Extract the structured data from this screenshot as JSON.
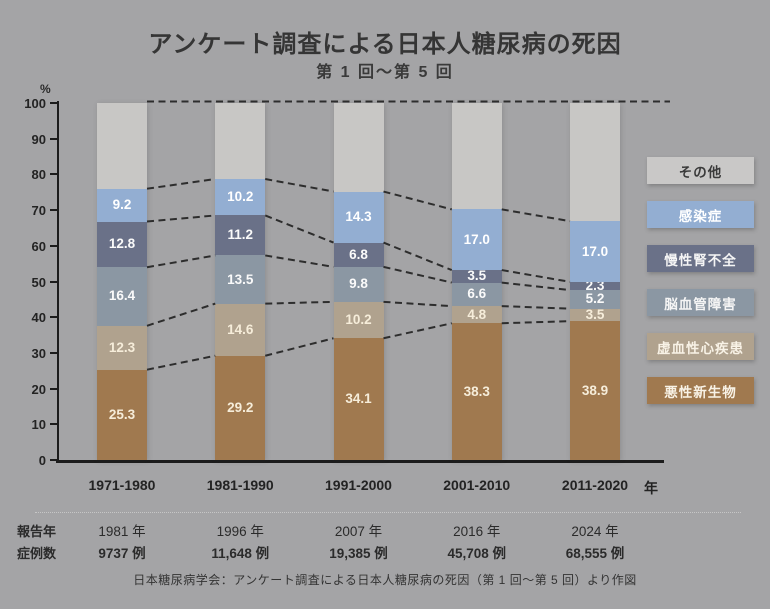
{
  "title": "アンケート調査による日本人糖尿病の死因",
  "subtitle": "第 1 回～第 5 回",
  "y_axis": {
    "unit": "%",
    "ticks": [
      100,
      90,
      80,
      70,
      60,
      50,
      40,
      30,
      20,
      10,
      0
    ],
    "max": 100
  },
  "x_axis": {
    "unit": "年",
    "categories": [
      "1971-1980",
      "1981-1990",
      "1991-2000",
      "2001-2010",
      "2011-2020"
    ]
  },
  "chart_data": {
    "type": "bar",
    "stacked": true,
    "title": "アンケート調査による日本人糖尿病の死因",
    "subtitle": "第 1 回～第 5 回",
    "categories": [
      "1971-1980",
      "1981-1990",
      "1991-2000",
      "2001-2010",
      "2011-2020"
    ],
    "ylabel": "%",
    "ylim": [
      0,
      100
    ],
    "series_bottom_to_top": [
      {
        "name": "悪性新生物",
        "color": "#a0794f",
        "label_color": "#f6edda",
        "values": [
          25.3,
          29.2,
          34.1,
          38.3,
          38.9
        ]
      },
      {
        "name": "虚血性心疾患",
        "color": "#b0a28e",
        "label_color": "#f6edda",
        "values": [
          12.3,
          14.6,
          10.2,
          4.8,
          3.5
        ]
      },
      {
        "name": "脳血管障害",
        "color": "#8b97a3",
        "label_color": "#fafafa",
        "values": [
          16.4,
          13.5,
          9.8,
          6.6,
          5.2
        ]
      },
      {
        "name": "慢性腎不全",
        "color": "#6a7188",
        "label_color": "#fafafa",
        "values": [
          12.8,
          11.2,
          6.8,
          3.5,
          2.3
        ]
      },
      {
        "name": "感染症",
        "color": "#93aed2",
        "label_color": "#ffffff",
        "values": [
          9.2,
          10.2,
          14.3,
          17.0,
          17.0
        ]
      }
    ],
    "remainder_series": {
      "name": "その他",
      "color": "#c8c7c5",
      "fill_to": 100,
      "labeled": false
    },
    "legend_position": "right",
    "grid": false,
    "dashed_connectors": true
  },
  "legend": {
    "items": [
      {
        "label": "その他",
        "color": "#c9c8c7",
        "text_color": "#3a3a3a"
      },
      {
        "label": "感染症",
        "color": "#93aed2",
        "text_color": "#ffffff"
      },
      {
        "label": "慢性腎不全",
        "color": "#6a7188",
        "text_color": "#f5f5f5"
      },
      {
        "label": "脳血管障害",
        "color": "#8b97a3",
        "text_color": "#f5f5f5"
      },
      {
        "label": "虚血性心疾患",
        "color": "#b0a28e",
        "text_color": "#f8f2e6"
      },
      {
        "label": "悪性新生物",
        "color": "#a0794f",
        "text_color": "#f8f2e6"
      }
    ]
  },
  "report_table": {
    "row1_label": "報告年",
    "row2_label": "症例数",
    "years": [
      "1981 年",
      "1996 年",
      "2007 年",
      "2016 年",
      "2024 年"
    ],
    "cases": [
      "9737 例",
      "11,648 例",
      "19,385 例",
      "45,708 例",
      "68,555 例"
    ]
  },
  "source": "日本糖尿病学会：アンケート調査による日本人糖尿病の死因（第 1 回～第 5 回）より作図",
  "colors": {
    "background": "#a4a4a6",
    "axis": "#1c1c1c",
    "dashed_line": "#2d2d2d",
    "separator": "#c6c6c6",
    "title_text": "#353535"
  }
}
